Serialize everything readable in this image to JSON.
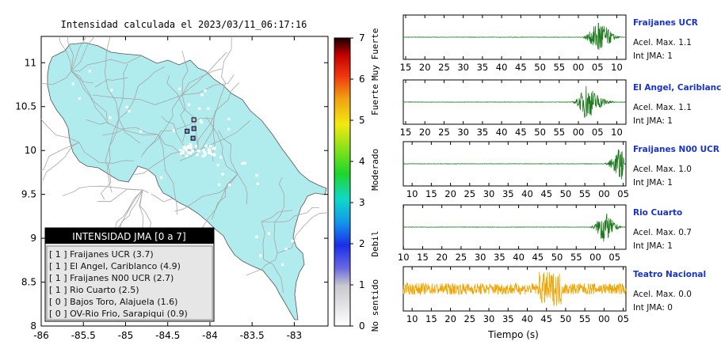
{
  "map": {
    "title": "Intensidad calculada el 2023/03/11_06:17:16",
    "xlim": [
      -86,
      -82.6
    ],
    "ylim": [
      8,
      11.3
    ],
    "xticks": [
      "-86",
      "-85.5",
      "-85",
      "-84.5",
      "-84",
      "-83.5",
      "-83"
    ],
    "xtick_values": [
      -86,
      -85.5,
      -85,
      -84.5,
      -84,
      -83.5,
      -83
    ],
    "yticks": [
      "8",
      "8.5",
      "9",
      "9.5",
      "10",
      "10.5",
      "11"
    ],
    "ytick_values": [
      8,
      8.5,
      9,
      9.5,
      10,
      10.5,
      11
    ],
    "land_color": "#b0ecee",
    "station_markers": [
      {
        "lon": -84.27,
        "lat": 10.22,
        "color": "#8a9adf"
      },
      {
        "lon": -84.19,
        "lat": 10.25,
        "color": "#8a9adf"
      },
      {
        "lon": -84.19,
        "lat": 10.35,
        "color": "#b7c2ee"
      },
      {
        "lon": -84.2,
        "lat": 10.14,
        "color": "#8a9adf"
      }
    ]
  },
  "colorbar": {
    "ticks": [
      "0",
      "1",
      "2",
      "3",
      "4",
      "5",
      "6",
      "7"
    ],
    "tick_values": [
      0,
      1,
      2,
      3,
      4,
      5,
      6,
      7
    ],
    "category_labels": [
      {
        "text": "No sentido",
        "value": 0.5
      },
      {
        "text": "Debil",
        "value": 2
      },
      {
        "text": "Moderado",
        "value": 3.8
      },
      {
        "text": "Fuerte",
        "value": 5.5
      },
      {
        "text": "Muy Fuerte",
        "value": 6.6
      }
    ]
  },
  "legend": {
    "title": "INTENSIDAD JMA [0 a 7]",
    "items": [
      "[ 1 ]  Fraijanes UCR (3.7)",
      "[ 1 ]  El Angel, Cariblanco (4.9)",
      "[ 1 ]  Fraijanes N00 UCR (2.7)",
      "[ 1 ]  Rio Cuarto (2.5)",
      "[ 0 ]  Bajos Toro, Alajuela (1.6)",
      "[ 0 ]  OV-Rio Frio, Sarapiqui (0.9)"
    ]
  },
  "chart_data": [
    {
      "type": "line",
      "name": "map",
      "title": "Intensidad calculada el 2023/03/11_06:17:16",
      "xlim": [
        -86,
        -82.6
      ],
      "ylim": [
        8,
        11.3
      ],
      "grid": false,
      "legend_placement": "bottom-left"
    },
    {
      "type": "line",
      "name": "Fraijanes UCR",
      "x_ticks": [
        "15",
        "20",
        "25",
        "30",
        "35",
        "40",
        "45",
        "50",
        "55",
        "00",
        "05",
        "10"
      ],
      "tick_offset": 0.62,
      "tick_spacing": 5,
      "window_seconds": 58,
      "color": "#1e7a1e",
      "waveform": {
        "quiet_amp": 0.3,
        "event_start": 0.79,
        "event_peak": 0.88,
        "event_end": 0.99,
        "event_amp": 1.0
      }
    },
    {
      "type": "line",
      "name": "El Angel, Cariblanco",
      "x_ticks": [
        "15",
        "20",
        "25",
        "30",
        "35",
        "40",
        "45",
        "50",
        "55",
        "00",
        "05",
        "10"
      ],
      "tick_offset": 0.62,
      "tick_spacing": 5,
      "window_seconds": 58,
      "color": "#1e7a1e",
      "waveform": {
        "quiet_amp": 0.3,
        "event_start": 0.75,
        "event_peak": 0.82,
        "event_end": 0.97,
        "event_amp": 0.95
      }
    },
    {
      "type": "line",
      "name": "Fraijanes N00 UCR",
      "x_ticks": [
        "10",
        "15",
        "20",
        "25",
        "30",
        "35",
        "40",
        "45",
        "50",
        "55",
        "00",
        "05"
      ],
      "tick_offset": 2.3,
      "tick_spacing": 5,
      "window_seconds": 58,
      "color": "#1e7a1e",
      "waveform": {
        "quiet_amp": 0.3,
        "event_start": 0.89,
        "event_peak": 0.98,
        "event_end": 1.0,
        "event_amp": 1.0
      }
    },
    {
      "type": "line",
      "name": "Rio Cuarto",
      "x_ticks": [
        "10",
        "15",
        "20",
        "25",
        "30",
        "35",
        "40",
        "45",
        "50",
        "55",
        "00",
        "05"
      ],
      "tick_offset": 0.05,
      "tick_spacing": 5,
      "window_seconds": 58,
      "color": "#1e7a1e",
      "waveform": {
        "quiet_amp": 0.3,
        "event_start": 0.83,
        "event_peak": 0.9,
        "event_end": 1.0,
        "event_amp": 0.9
      }
    },
    {
      "type": "line",
      "name": "Teatro Nacional",
      "x_ticks": [
        "10",
        "15",
        "20",
        "25",
        "30",
        "35",
        "40",
        "45",
        "50",
        "55",
        "00",
        "05"
      ],
      "tick_offset": 2.3,
      "tick_spacing": 5,
      "window_seconds": 58,
      "color": "#f0a400",
      "waveform": {
        "quiet_amp": 0.28,
        "event_start": 0.0,
        "event_peak": 0.66,
        "event_end": 1.0,
        "event_amp": 0.55
      }
    }
  ],
  "stations": [
    {
      "name": "Fraijanes UCR",
      "acel_label": "Acel. Max. 1.1",
      "int_label": "Int JMA: 1"
    },
    {
      "name": "El Angel, Cariblanco",
      "acel_label": "Acel. Max. 1.1",
      "int_label": "Int JMA: 1"
    },
    {
      "name": "Fraijanes N00 UCR",
      "acel_label": "Acel. Max. 1.0",
      "int_label": "Int JMA: 1"
    },
    {
      "name": "Rio Cuarto",
      "acel_label": "Acel. Max. 0.7",
      "int_label": "Int JMA: 1"
    },
    {
      "name": "Teatro Nacional",
      "acel_label": "Acel. Max. 0.0",
      "int_label": "Int JMA: 0"
    }
  ],
  "xlabel": "Tiempo (s)"
}
